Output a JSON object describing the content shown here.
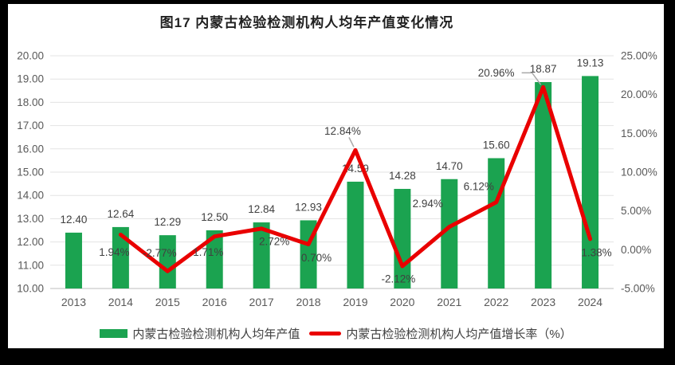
{
  "title": "图17 内蒙古检验检测机构人均年产值变化情况",
  "chart_data": {
    "type": "combo",
    "title": "图17 内蒙古检验检测机构人均年产值变化情况",
    "categories": [
      "2013",
      "2014",
      "2015",
      "2016",
      "2017",
      "2018",
      "2019",
      "2020",
      "2021",
      "2022",
      "2023",
      "2024"
    ],
    "series": [
      {
        "name": "内蒙古检验检测机构人均年产值",
        "type": "bar",
        "axis": "left",
        "color": "#1BA350",
        "values": [
          12.4,
          12.64,
          12.29,
          12.5,
          12.84,
          12.93,
          14.59,
          14.28,
          14.7,
          15.6,
          18.87,
          19.13
        ],
        "labels": [
          "12.40",
          "12.64",
          "12.29",
          "12.50",
          "12.84",
          "12.93",
          "14.59",
          "14.28",
          "14.70",
          "15.60",
          "18.87",
          "19.13"
        ]
      },
      {
        "name": "内蒙古检验检测机构人均产值增长率（%）",
        "type": "line",
        "axis": "right",
        "color": "#E90000",
        "values": [
          null,
          1.94,
          -2.77,
          1.71,
          2.72,
          0.7,
          12.84,
          -2.12,
          2.94,
          6.12,
          20.96,
          1.38
        ],
        "labels": [
          null,
          "1.94%",
          "-2.77%",
          "1.71%",
          "2.72%",
          "0.70%",
          "12.84%",
          "-2.12%",
          "2.94%",
          "6.12%",
          "20.96%",
          "1.38%"
        ]
      }
    ],
    "left_axis": {
      "min": 10,
      "max": 20,
      "step": 1,
      "tick_labels": [
        "20.00",
        "19.00",
        "18.00",
        "17.00",
        "16.00",
        "15.00",
        "14.00",
        "13.00",
        "12.00",
        "11.00",
        "10.00"
      ]
    },
    "right_axis": {
      "min": -5,
      "max": 25,
      "step": 5,
      "tick_labels": [
        "25.00%",
        "20.00%",
        "15.00%",
        "10.00%",
        "5.00%",
        "0.00%",
        "-5.00%"
      ]
    },
    "grid": true,
    "legend_position": "bottom",
    "colors": {
      "grid": "#E3E3E3",
      "baseline": "#D4D4D4",
      "axis_text": "#595959",
      "data_label": "#404040",
      "leader": "#A9A9A9",
      "background": "#FFFFFF",
      "page_background": "#000000"
    }
  },
  "legend": {
    "items": [
      {
        "label": "内蒙古检验检测机构人均年产值",
        "color": "#1BA350",
        "swatch": "bar"
      },
      {
        "label": "内蒙古检验检测机构人均产值增长率（%）",
        "color": "#E90000",
        "swatch": "line"
      }
    ]
  }
}
